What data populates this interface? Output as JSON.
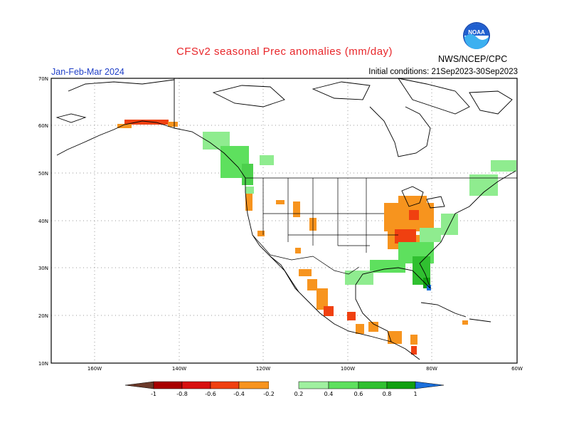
{
  "header": {
    "title": "CFSv2 seasonal Prec anomalies (mm/day)",
    "season": "Jan-Feb-Mar 2024",
    "initial_conditions": "Initial conditions: 21Sep2023-30Sep2023",
    "agency": "NWS/NCEP/CPC",
    "logo_text": "NOAA"
  },
  "map": {
    "lat_labels": [
      "70N",
      "60N",
      "50N",
      "40N",
      "30N",
      "20N",
      "10N"
    ],
    "lon_labels": [
      "160W",
      "140W",
      "120W",
      "100W",
      "80W",
      "60W"
    ],
    "colors": {
      "land_outline": "#000000",
      "grid": "#9a9a9a",
      "dry_strong": "#e8401c",
      "dry_moderate": "#f7941e",
      "wet_light": "#8fec8f",
      "wet_moderate": "#4cd04c",
      "wet_strong": "#1aa51a"
    }
  },
  "colorbar": {
    "labels": [
      "-1",
      "-0.8",
      "-0.6",
      "-0.4",
      "-0.2",
      "0.2",
      "0.4",
      "0.6",
      "0.8",
      "1"
    ],
    "colors": [
      "#6b3a2a",
      "#a80000",
      "#d81010",
      "#f04010",
      "#f7941e",
      "#ffffff",
      "#a0f0a0",
      "#5ee05e",
      "#30c030",
      "#10a010",
      "#1a6fdc"
    ]
  }
}
